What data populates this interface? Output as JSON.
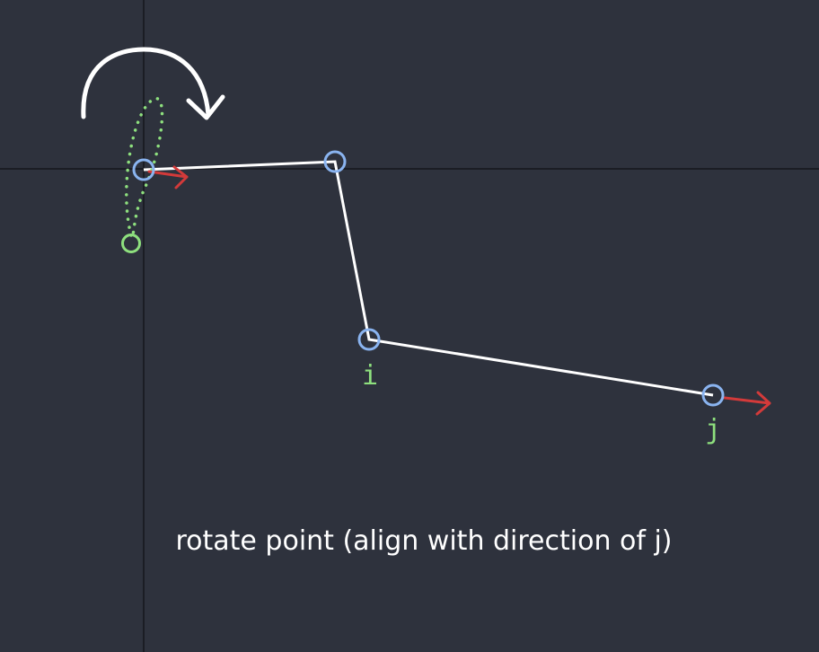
{
  "colors": {
    "background": "#2e323d",
    "axis": "#1b1d24",
    "segment": "#ffffff",
    "joint": "#8ab4f0",
    "direction_arrow": "#d33a3a",
    "rotated_point": "#8ee07e",
    "label": "#8ee07e",
    "caption": "#ffffff"
  },
  "labels": {
    "point_i": "i",
    "point_j": "j"
  },
  "caption": "rotate point (align with direction of j)"
}
